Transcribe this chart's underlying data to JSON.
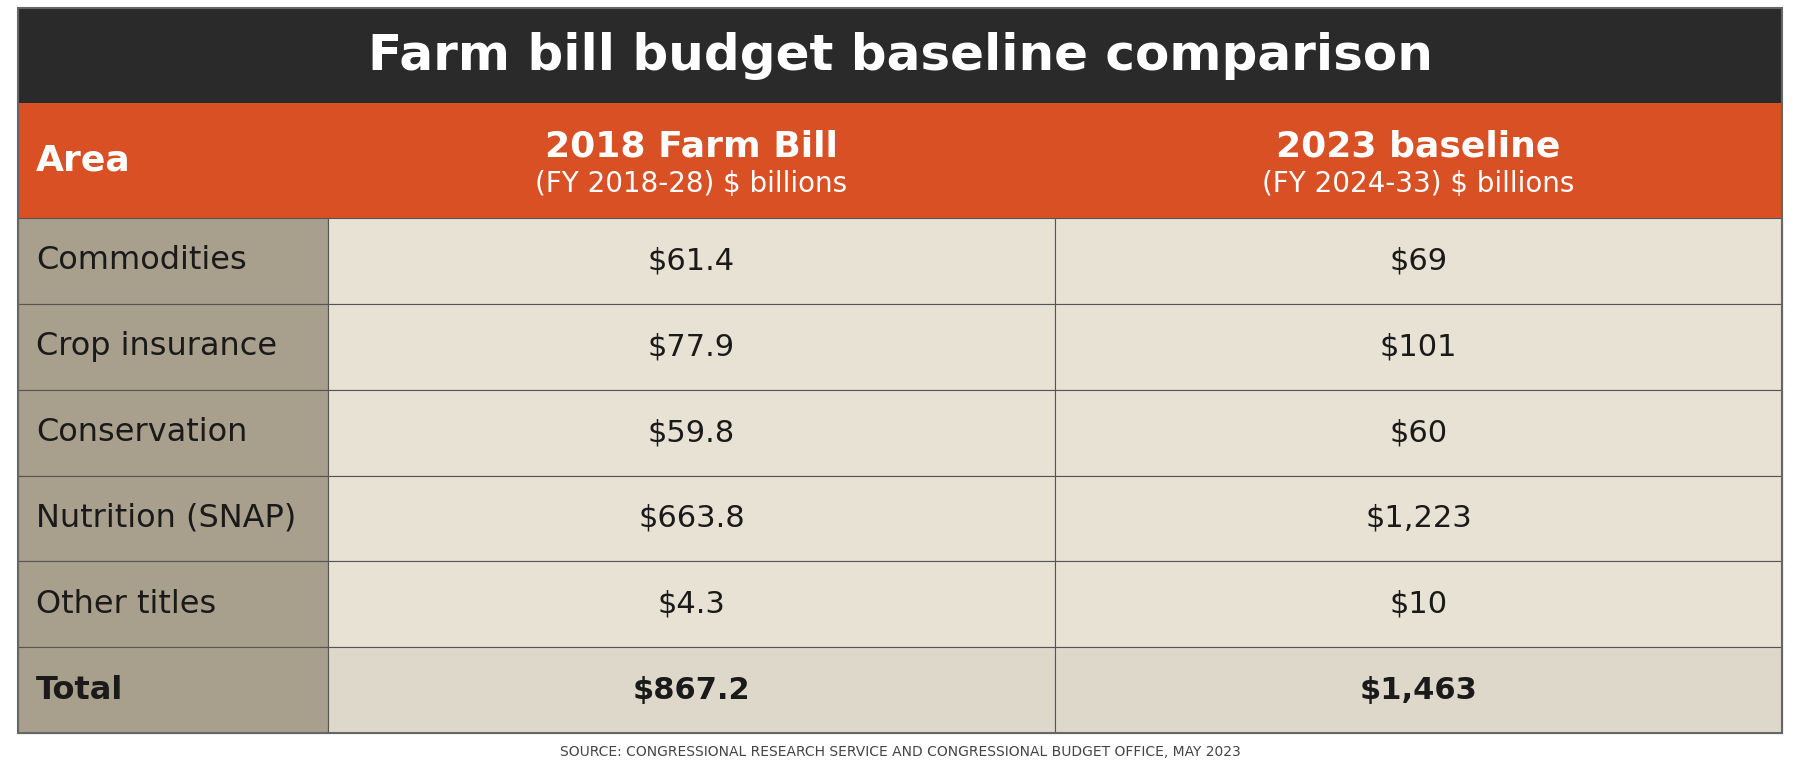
{
  "title": "Farm bill budget baseline comparison",
  "title_color": "#ffffff",
  "title_bg_color": "#2a2a2a",
  "header_bg_color": "#d95025",
  "header_text_color": "#ffffff",
  "col1_header": "Area",
  "col2_header": "2018 Farm Bill",
  "col2_subheader": "(FY 2018-28) $ billions",
  "col3_header": "2023 baseline",
  "col3_subheader": "(FY 2024-33) $ billions",
  "row_labels": [
    "Commodities",
    "Crop insurance",
    "Conservation",
    "Nutrition (SNAP)",
    "Other titles",
    "Total"
  ],
  "col2_values": [
    "$61.4",
    "$77.9",
    "$59.8",
    "$663.8",
    "$4.3",
    "$867.2"
  ],
  "col3_values": [
    "$69",
    "$101",
    "$60",
    "$1,223",
    "$10",
    "$1,463"
  ],
  "label_col_bg": "#a89f8c",
  "label_col_total_bg": "#a89f8c",
  "data_row_bg": "#e8e2d4",
  "data_total_bg": "#ddd8ca",
  "divider_color": "#555555",
  "source_text": "SOURCE: CONGRESSIONAL RESEARCH SERVICE AND CONGRESSIONAL BUDGET OFFICE, MAY 2023",
  "source_color": "#444444",
  "outer_bg_color": "#ffffff",
  "text_color": "#1a1a1a"
}
